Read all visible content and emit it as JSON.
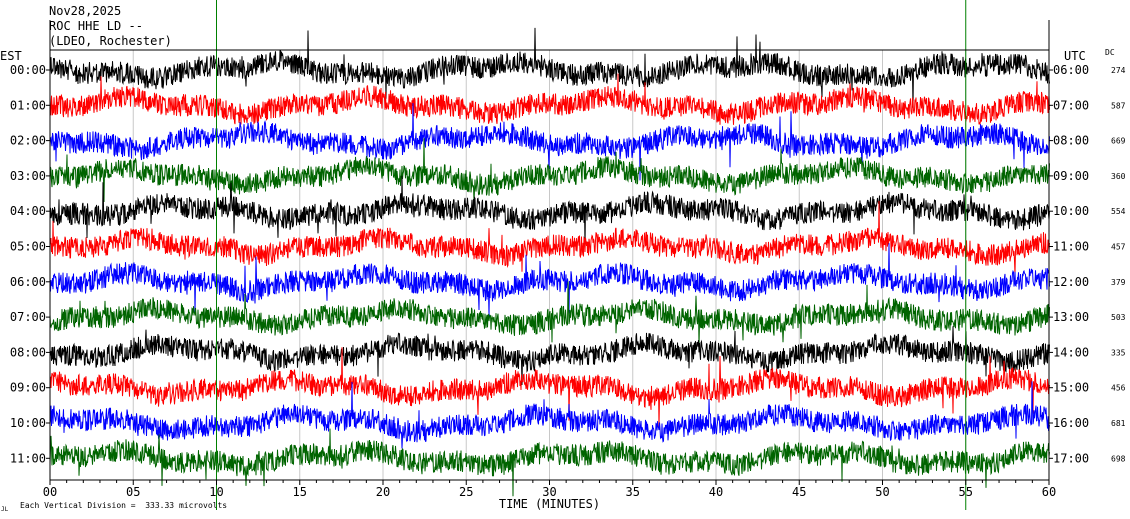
{
  "header": {
    "date": "Nov28,2025",
    "station": "ROC HHE LD --",
    "network": "(LDEO, Rochester)"
  },
  "left_axis_title": "EST",
  "right_axis_title": "UTC",
  "dc_title": "DC",
  "footer": {
    "scale_note": "Each Vertical Division =  333.33 microvolts",
    "corner_mark": "JL"
  },
  "colors": {
    "cycle": [
      "#000000",
      "#ff0000",
      "#0000ff",
      "#006400"
    ],
    "event_line": "#008000"
  },
  "chart_data": {
    "type": "line",
    "title": "",
    "xlabel": "TIME (MINUTES)",
    "ylabel": "",
    "xlim": [
      0,
      60
    ],
    "x_ticks": [
      0,
      5,
      10,
      15,
      20,
      25,
      30,
      35,
      40,
      45,
      50,
      55,
      60
    ],
    "x_tick_labels": [
      "00",
      "05",
      "10",
      "15",
      "20",
      "25",
      "30",
      "35",
      "40",
      "45",
      "50",
      "55",
      "60"
    ],
    "rows": [
      {
        "est": "00:00",
        "utc": "06:00",
        "dc": "274",
        "color": "#000000"
      },
      {
        "est": "01:00",
        "utc": "07:00",
        "dc": "587",
        "color": "#ff0000"
      },
      {
        "est": "02:00",
        "utc": "08:00",
        "dc": "669",
        "color": "#0000ff"
      },
      {
        "est": "03:00",
        "utc": "09:00",
        "dc": "360",
        "color": "#006400"
      },
      {
        "est": "04:00",
        "utc": "10:00",
        "dc": "554",
        "color": "#000000"
      },
      {
        "est": "05:00",
        "utc": "11:00",
        "dc": "457",
        "color": "#ff0000"
      },
      {
        "est": "06:00",
        "utc": "12:00",
        "dc": "379",
        "color": "#0000ff"
      },
      {
        "est": "07:00",
        "utc": "13:00",
        "dc": "503",
        "color": "#006400"
      },
      {
        "est": "08:00",
        "utc": "14:00",
        "dc": "335",
        "color": "#000000"
      },
      {
        "est": "09:00",
        "utc": "15:00",
        "dc": "456",
        "color": "#ff0000"
      },
      {
        "est": "10:00",
        "utc": "16:00",
        "dc": "681",
        "color": "#0000ff"
      },
      {
        "est": "11:00",
        "utc": "17:00",
        "dc": "698",
        "color": "#006400"
      }
    ],
    "grid": "vertical",
    "event_marker_minutes": [
      10,
      55
    ]
  }
}
